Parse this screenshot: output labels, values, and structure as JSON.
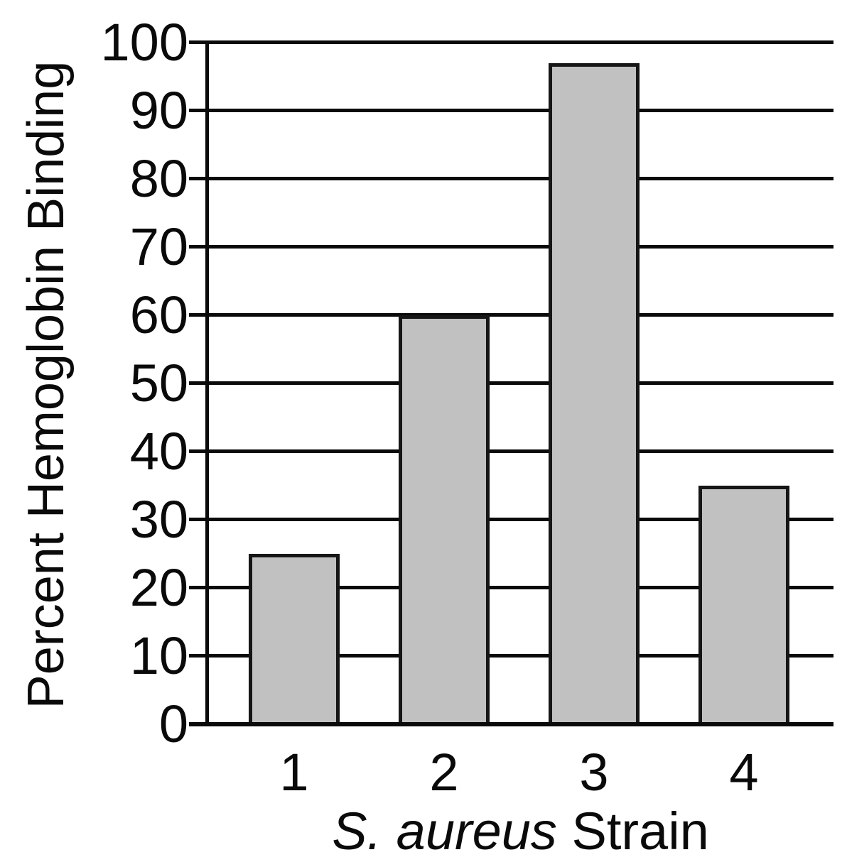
{
  "figure": {
    "background_color": "#ffffff",
    "axis_color": "#0a0a0a",
    "bar_fill_color": "#c1c1c1",
    "bar_border_color": "#161616",
    "text_color": "#0a0a0a"
  },
  "chart_data": {
    "type": "bar",
    "title": "",
    "ylabel": "Percent Hemoglobin Binding",
    "xlabel": "S. aureus Strain",
    "xlabel_italic_part": "S. aureus",
    "xlabel_regular_part": " Strain",
    "categories": [
      "1",
      "2",
      "3",
      "4"
    ],
    "series": [
      {
        "name": "Percent hemoglobin binding",
        "values": [
          25,
          60,
          97,
          35
        ]
      }
    ],
    "values": [
      25,
      60,
      97,
      35
    ],
    "ylim": [
      0,
      100
    ],
    "yticks": [
      0,
      10,
      20,
      30,
      40,
      50,
      60,
      70,
      80,
      90,
      100
    ],
    "ytick_labels": [
      "0",
      "10",
      "20",
      "30",
      "40",
      "50",
      "60",
      "70",
      "80",
      "90",
      "100"
    ],
    "grid": "horizontal gridlines at every y tick, drawn behind bars, with tick overhang left of y-axis",
    "legend_position": "none",
    "bar_style": "single gray series with black outlines"
  }
}
